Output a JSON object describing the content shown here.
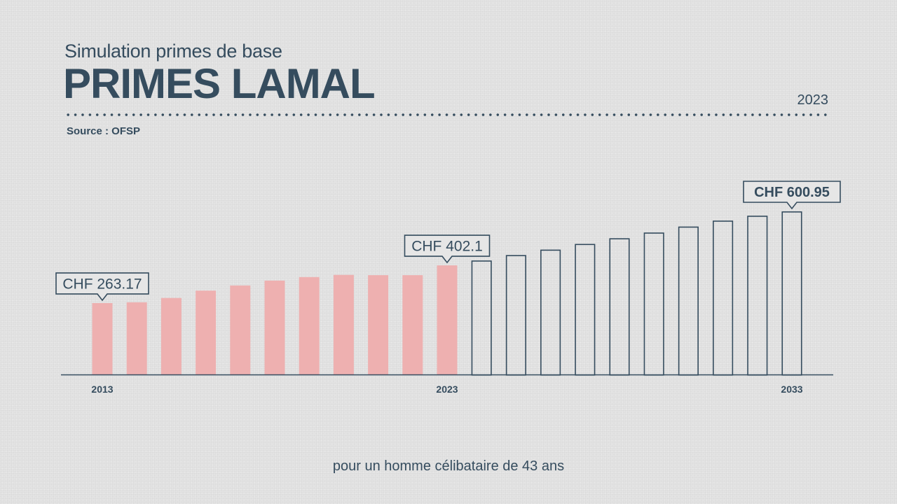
{
  "header": {
    "subtitle": "Simulation primes de base",
    "title": "PRIMES LAMAL",
    "year": "2023",
    "source": "Source : OFSP"
  },
  "footer": {
    "note": "pour un homme célibataire de 43 ans"
  },
  "colors": {
    "historical_bar": "#eeb0b0",
    "projection_outline": "#354c5e",
    "text": "#354c5e",
    "background": "#e3e3e3"
  },
  "chart_data": {
    "type": "bar",
    "title": "PRIMES LAMAL",
    "subtitle": "Simulation primes de base",
    "unit": "CHF",
    "x": [
      2013,
      2014,
      2015,
      2016,
      2017,
      2018,
      2019,
      2020,
      2021,
      2022,
      2023,
      2024,
      2025,
      2026,
      2027,
      2028,
      2029,
      2030,
      2031,
      2032,
      2033
    ],
    "series": [
      {
        "values": [
          263.17,
          266,
          282,
          309,
          328,
          346,
          359,
          367,
          366,
          366,
          402.1,
          420,
          440,
          460,
          481,
          502,
          523,
          545,
          567,
          585,
          600.95
        ],
        "styles": [
          "actual",
          "actual",
          "actual",
          "actual",
          "actual",
          "actual",
          "actual",
          "actual",
          "actual",
          "actual",
          "actual",
          "projection",
          "projection",
          "projection",
          "projection",
          "projection",
          "projection",
          "projection",
          "projection",
          "projection",
          "projection"
        ]
      }
    ],
    "tick_labels": [
      {
        "x": 2013,
        "label": "2013"
      },
      {
        "x": 2023,
        "label": "2023"
      },
      {
        "x": 2033,
        "label": "2033"
      }
    ],
    "annotations": [
      {
        "x": 2013,
        "label": "CHF 263.17",
        "bold": false
      },
      {
        "x": 2023,
        "label": "CHF 402.1",
        "bold": false
      },
      {
        "x": 2033,
        "label": "CHF 600.95",
        "bold": true
      }
    ],
    "xlabel": "",
    "ylabel": "",
    "ylim": [
      0,
      600.95
    ],
    "grid": false,
    "legend": "none"
  }
}
